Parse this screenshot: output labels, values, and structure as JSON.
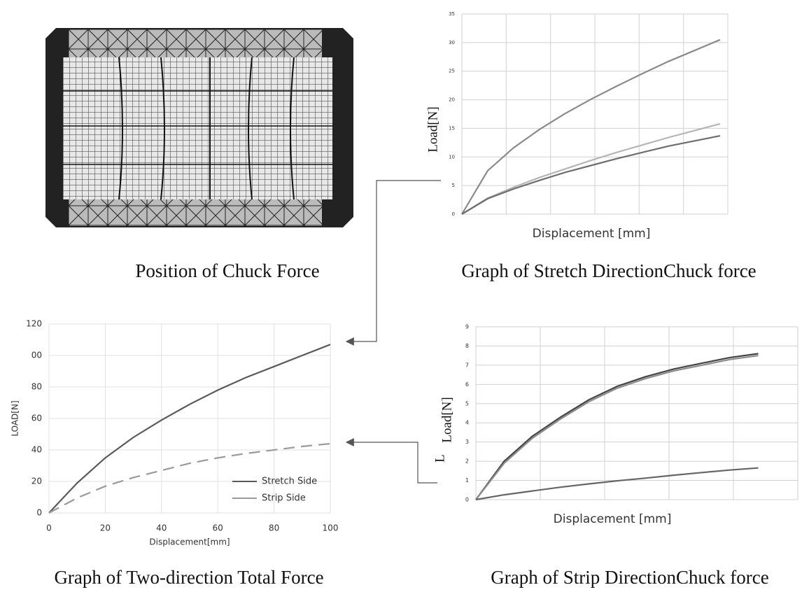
{
  "image": {
    "caption": "Position of Chuck Force"
  },
  "chart_data": [
    {
      "type": "line",
      "title": "Graph of Stretch DirectionChuck force",
      "xlabel": "Displacement [mm]",
      "ylabel": "Load[N]",
      "x": [
        0,
        10,
        20,
        30,
        40,
        50,
        60,
        70,
        80,
        90,
        100
      ],
      "xlim": [
        0,
        103
      ],
      "ylim": [
        0,
        35
      ],
      "yticks": [
        0,
        5,
        10,
        15,
        20,
        25,
        30,
        35
      ],
      "grid": true,
      "series": [
        {
          "color": "#8a8a8a",
          "values": [
            0,
            7.6,
            11.6,
            14.8,
            17.6,
            20.1,
            22.4,
            24.6,
            26.7,
            28.6,
            30.5
          ]
        },
        {
          "color": "#b5b5b5",
          "values": [
            0,
            2.8,
            4.7,
            6.4,
            7.9,
            9.4,
            10.8,
            12.1,
            13.4,
            14.6,
            15.8
          ]
        },
        {
          "color": "#6e6e6e",
          "values": [
            0,
            2.7,
            4.4,
            5.9,
            7.3,
            8.5,
            9.7,
            10.8,
            11.9,
            12.8,
            13.7
          ]
        }
      ]
    },
    {
      "type": "line",
      "title": "Graph of Two-direction Total Force",
      "xlabel": "Displacement[mm]",
      "ylabel": "LOAD[N]",
      "x": [
        0,
        10,
        20,
        30,
        40,
        50,
        60,
        70,
        80,
        90,
        100
      ],
      "xlim": [
        0,
        100
      ],
      "ylim": [
        0,
        120
      ],
      "xticks": [
        0,
        20,
        40,
        60,
        80,
        100
      ],
      "yticks": [
        0,
        20,
        40,
        60,
        80,
        {
          "value": 100,
          "label": "00"
        },
        120
      ],
      "grid": true,
      "legend": "lower right",
      "series": [
        {
          "name": "Stretch Side",
          "color": "#5a5a5a",
          "dashed": false,
          "values": [
            0,
            19,
            35,
            48,
            59,
            69,
            78,
            86,
            93,
            100,
            107
          ]
        },
        {
          "name": "Strip Side",
          "color": "#9a9a9a",
          "dashed": true,
          "values": [
            0,
            9.5,
            17,
            22.5,
            27,
            31.5,
            35,
            37.8,
            40,
            42.2,
            44
          ]
        }
      ]
    },
    {
      "type": "line",
      "title": "Graph of Strip DirectionChuck force",
      "xlabel": "Displacement [mm]",
      "ylabel": "Load[N]",
      "annotation": "L",
      "x": [
        0,
        10,
        20,
        30,
        40,
        50,
        60,
        70,
        80,
        90,
        100
      ],
      "xlim": [
        0,
        114
      ],
      "ylim": [
        0,
        9
      ],
      "yticks": [
        0,
        1,
        2,
        3,
        4,
        5,
        6,
        7,
        8,
        9
      ],
      "grid": true,
      "series": [
        {
          "color": "#444444",
          "values": [
            0,
            2.0,
            3.3,
            4.3,
            5.2,
            5.9,
            6.4,
            6.8,
            7.1,
            7.4,
            7.6
          ]
        },
        {
          "color": "#8c8c8c",
          "values": [
            0,
            1.9,
            3.2,
            4.2,
            5.1,
            5.8,
            6.3,
            6.7,
            7.0,
            7.3,
            7.5
          ]
        },
        {
          "color": "#666666",
          "values": [
            0,
            0.25,
            0.45,
            0.65,
            0.82,
            0.98,
            1.12,
            1.27,
            1.41,
            1.54,
            1.65
          ]
        }
      ]
    }
  ]
}
